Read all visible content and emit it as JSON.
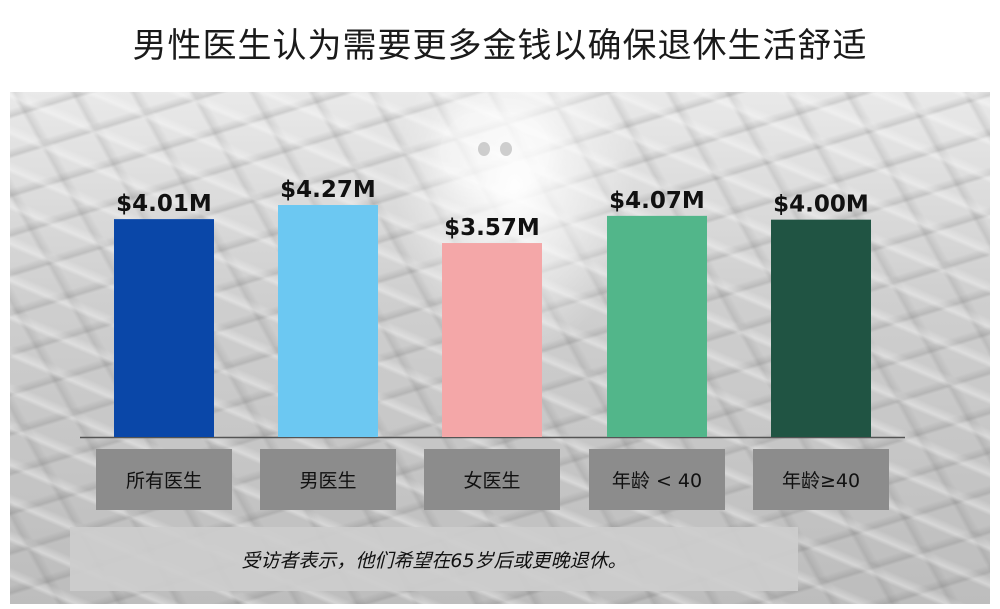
{
  "title": "男性医生认为需要更多金钱以确保退休生活舒适",
  "footnote": "受访者表示，他们希望在65岁后或更晚退休。",
  "colors": {
    "bar_all": "#0a47a8",
    "bar_male": "#6cc8f2",
    "bar_female": "#f4a7a8",
    "bar_under40": "#52b68a",
    "bar_40plus": "#205443",
    "category_box": "#8c8c8c",
    "baseline": "#555555"
  },
  "chart_data": {
    "type": "bar",
    "categories": [
      "所有医生",
      "男医生",
      "女医生",
      "年龄 < 40",
      "年龄≥40"
    ],
    "values": [
      4.01,
      4.27,
      3.57,
      4.07,
      4.0
    ],
    "data_labels": [
      "$4.01M",
      "$4.27M",
      "$3.57M",
      "$4.07M",
      "$4.00M"
    ],
    "unit": "$M",
    "title": "男性医生认为需要更多金钱以确保退休生活舒适",
    "xlabel": "",
    "ylabel": "",
    "grid": false,
    "legend": "none"
  }
}
